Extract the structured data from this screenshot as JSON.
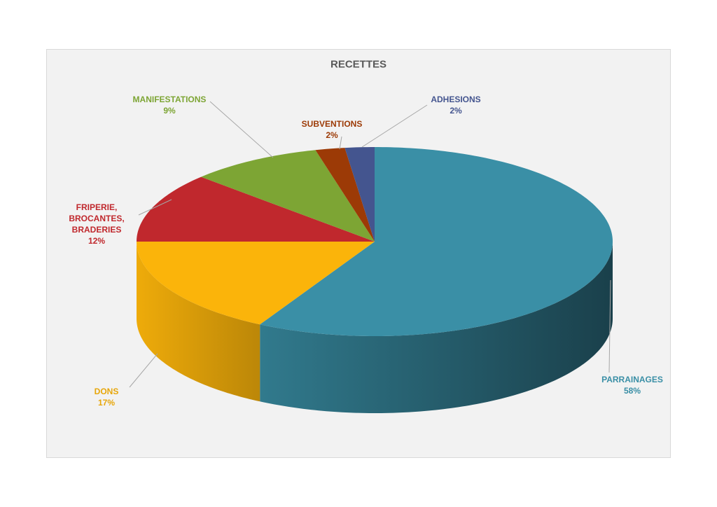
{
  "chart_data": {
    "type": "pie3d",
    "title": "RECETTES",
    "categories": [
      "PARRAINAGES",
      "DONS",
      "FRIPERIE, BROCANTES, BRADERIES",
      "MANIFESTATIONS",
      "SUBVENTIONS",
      "ADHESIONS"
    ],
    "values": [
      58,
      17,
      12,
      9,
      2,
      2
    ],
    "value_labels": [
      "58%",
      "17%",
      "12%",
      "9%",
      "2%",
      "2%"
    ],
    "colors": [
      "#3a8fa6",
      "#fbb40a",
      "#c0282d",
      "#7da534",
      "#9c3a06",
      "#44558f"
    ]
  }
}
